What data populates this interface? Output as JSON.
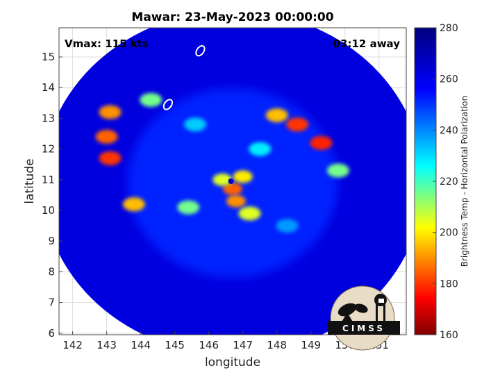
{
  "chart_data": {
    "type": "heatmap",
    "title": "Mawar: 23-May-2023 00:00:00",
    "xlabel": "longitude",
    "ylabel": "latitude",
    "xlim": [
      141.6,
      151.8
    ],
    "ylim": [
      5.95,
      15.95
    ],
    "xticks": [
      142,
      143,
      144,
      145,
      146,
      147,
      148,
      149,
      150,
      151
    ],
    "yticks": [
      6,
      7,
      8,
      9,
      10,
      11,
      12,
      13,
      14,
      15
    ],
    "grid": true,
    "annotations": {
      "vmax": "Vmax: 115 kts",
      "away": "03:12 away"
    },
    "colorbar": {
      "label": "Brightness Temp - Horizontal Polarization",
      "min": 160,
      "max": 280,
      "ticks": [
        160,
        180,
        200,
        220,
        240,
        260,
        280
      ],
      "colormap": "jet",
      "colors": [
        "#7f0000",
        "#ff0000",
        "#ffff00",
        "#00ffff",
        "#0000ff",
        "#00007f"
      ]
    },
    "swath": {
      "center_lon": 146.7,
      "center_lat": 10.9,
      "radius_deg": 5.6
    },
    "storm_center": {
      "lon": 146.65,
      "lat": 10.95,
      "eye_temp": 265
    },
    "features": [
      {
        "kind": "eyewall",
        "lon": 146.7,
        "lat": 10.7,
        "temp": 185
      },
      {
        "kind": "eyewall",
        "lon": 146.4,
        "lat": 11.0,
        "temp": 205
      },
      {
        "kind": "eyewall",
        "lon": 147.0,
        "lat": 11.1,
        "temp": 200
      },
      {
        "kind": "eyewall",
        "lon": 146.8,
        "lat": 10.3,
        "temp": 190
      },
      {
        "kind": "rainband",
        "lon": 148.6,
        "lat": 12.8,
        "temp": 180
      },
      {
        "kind": "rainband",
        "lon": 149.3,
        "lat": 12.2,
        "temp": 178
      },
      {
        "kind": "rainband",
        "lon": 148.0,
        "lat": 13.1,
        "temp": 195
      },
      {
        "kind": "rainband",
        "lon": 143.1,
        "lat": 11.7,
        "temp": 180
      },
      {
        "kind": "rainband",
        "lon": 143.1,
        "lat": 13.2,
        "temp": 190
      },
      {
        "kind": "rainband",
        "lon": 143.0,
        "lat": 12.4,
        "temp": 185
      },
      {
        "kind": "rainband",
        "lon": 143.8,
        "lat": 10.2,
        "temp": 195
      },
      {
        "kind": "rainband",
        "lon": 145.4,
        "lat": 10.1,
        "temp": 215
      },
      {
        "kind": "rainband",
        "lon": 147.2,
        "lat": 9.9,
        "temp": 205
      },
      {
        "kind": "rainband",
        "lon": 149.8,
        "lat": 11.3,
        "temp": 215
      },
      {
        "kind": "rainband",
        "lon": 144.3,
        "lat": 13.6,
        "temp": 215
      },
      {
        "kind": "rainband",
        "lon": 145.6,
        "lat": 12.8,
        "temp": 232
      },
      {
        "kind": "rainband",
        "lon": 147.5,
        "lat": 12.0,
        "temp": 228
      },
      {
        "kind": "rainband",
        "lon": 148.3,
        "lat": 9.5,
        "temp": 238
      }
    ],
    "islands": [
      {
        "lon": 145.75,
        "lat": 15.2
      },
      {
        "lon": 144.8,
        "lat": 13.45
      }
    ]
  },
  "logo": {
    "text": "CIMSS"
  }
}
